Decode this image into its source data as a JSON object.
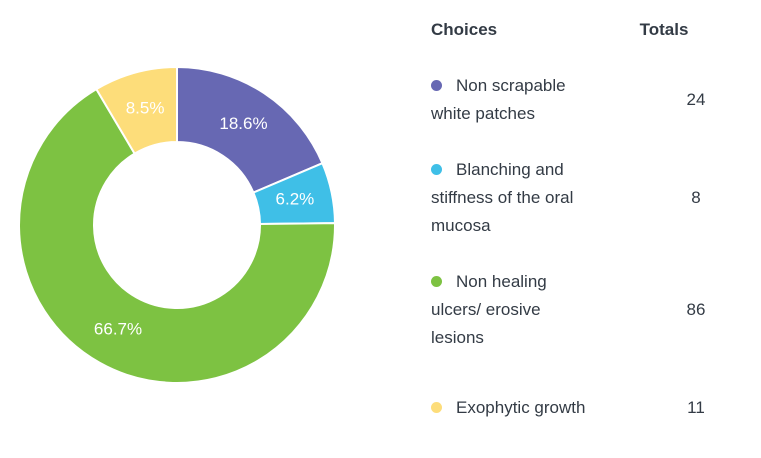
{
  "legend_header": {
    "choices": "Choices",
    "totals": "Totals"
  },
  "chart_data": {
    "type": "pie",
    "donut": true,
    "categories": [
      "Non scrapable white patches",
      "Blanching and stiffness of the oral mucosa",
      "Non healing ulcers/ erosive lesions",
      "Exophytic growth"
    ],
    "values": [
      24,
      8,
      86,
      11
    ],
    "percent_labels": [
      "18.6%",
      "6.2%",
      "66.7%",
      "8.5%"
    ],
    "colors": [
      "#6768b3",
      "#3fbfe7",
      "#7dc242",
      "#fddd7a"
    ]
  }
}
